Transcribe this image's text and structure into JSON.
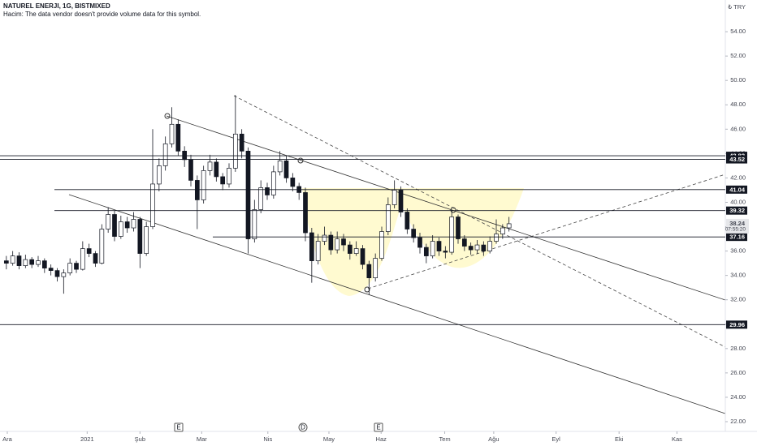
{
  "chart_data": {
    "type": "candlestick",
    "title": "NATUREL ENERJI, 1G, BISTMIXED",
    "subtitle": "Hacim: The data vendor doesn't provide volume data for this symbol.",
    "currency": "₺ TRY",
    "countdown": "07:55:20",
    "events": [
      "E",
      "D",
      "E"
    ],
    "xlim": [
      -1,
      113
    ],
    "xticks": [
      {
        "value": 0.15,
        "label": "Ara"
      },
      {
        "value": 12.7,
        "label": "2021"
      },
      {
        "value": 21,
        "label": "Şub"
      },
      {
        "value": 30.7,
        "label": "Mar"
      },
      {
        "value": 41.1,
        "label": "Nis"
      },
      {
        "value": 50.7,
        "label": "May"
      },
      {
        "value": 58.9,
        "label": "Haz"
      },
      {
        "value": 68.9,
        "label": "Tem"
      },
      {
        "value": 76.6,
        "label": "Ağu"
      },
      {
        "value": 86.4,
        "label": "Eyl"
      },
      {
        "value": 96.3,
        "label": "Eki"
      },
      {
        "value": 105.4,
        "label": "Kas"
      }
    ],
    "ylim": [
      21.2,
      56.6
    ],
    "yticks": [
      {
        "value": 22,
        "label": "22.00"
      },
      {
        "value": 24,
        "label": "24.00"
      },
      {
        "value": 26,
        "label": "26.00"
      },
      {
        "value": 28,
        "label": "28.00"
      },
      {
        "value": 30,
        "label": "30.00"
      },
      {
        "value": 32,
        "label": "32.00"
      },
      {
        "value": 34,
        "label": "34.00"
      },
      {
        "value": 36,
        "label": "36.00"
      },
      {
        "value": 38,
        "label": "38.00"
      },
      {
        "value": 40,
        "label": "40.00"
      },
      {
        "value": 42,
        "label": "42.00"
      },
      {
        "value": 44,
        "label": "44.00"
      },
      {
        "value": 46,
        "label": "46.00"
      },
      {
        "value": 48,
        "label": "48.00"
      },
      {
        "value": 50,
        "label": "50.00"
      },
      {
        "value": 52,
        "label": "52.00"
      },
      {
        "value": 54,
        "label": "54.00"
      }
    ],
    "levels": [
      43.82,
      43.52,
      41.04,
      39.32,
      37.16,
      29.96
    ],
    "up_color": "#ffffff",
    "down_color": "#131722",
    "ohlc": [
      [
        35.2,
        35.6,
        34.5,
        35.0
      ],
      [
        35.0,
        36.0,
        34.8,
        35.6
      ],
      [
        35.6,
        35.9,
        34.5,
        34.8
      ],
      [
        34.8,
        35.7,
        34.6,
        35.3
      ],
      [
        35.3,
        35.5,
        34.6,
        34.9
      ],
      [
        34.9,
        35.6,
        34.7,
        35.2
      ],
      [
        35.2,
        35.4,
        34.2,
        34.6
      ],
      [
        34.6,
        34.9,
        34.0,
        34.4
      ],
      [
        34.4,
        34.6,
        33.5,
        33.9
      ],
      [
        33.9,
        34.5,
        32.5,
        34.2
      ],
      [
        34.2,
        35.4,
        34.0,
        35.0
      ],
      [
        35.0,
        35.2,
        34.2,
        34.5
      ],
      [
        34.5,
        36.8,
        34.4,
        36.2
      ],
      [
        36.2,
        36.6,
        35.5,
        35.8
      ],
      [
        35.8,
        36.0,
        34.7,
        35.0
      ],
      [
        35.0,
        38.2,
        34.9,
        37.8
      ],
      [
        37.8,
        39.6,
        37.5,
        39.0
      ],
      [
        39.0,
        39.3,
        36.8,
        37.2
      ],
      [
        37.2,
        38.9,
        37.0,
        38.4
      ],
      [
        38.4,
        38.8,
        37.5,
        37.9
      ],
      [
        37.9,
        39.2,
        37.6,
        38.6
      ],
      [
        38.6,
        38.8,
        34.6,
        35.8
      ],
      [
        35.8,
        38.4,
        35.6,
        38.0
      ],
      [
        38.0,
        46.0,
        37.8,
        41.5
      ],
      [
        41.5,
        43.6,
        40.9,
        43.0
      ],
      [
        43.0,
        45.4,
        42.6,
        44.8
      ],
      [
        44.8,
        47.8,
        44.5,
        46.4
      ],
      [
        46.4,
        46.8,
        43.8,
        44.2
      ],
      [
        44.2,
        44.6,
        42.9,
        43.5
      ],
      [
        43.5,
        43.9,
        41.3,
        41.8
      ],
      [
        41.8,
        42.2,
        37.8,
        40.2
      ],
      [
        40.2,
        43.0,
        39.9,
        42.6
      ],
      [
        42.6,
        43.9,
        42.2,
        43.3
      ],
      [
        43.3,
        43.6,
        41.7,
        42.1
      ],
      [
        42.1,
        42.4,
        41.0,
        41.5
      ],
      [
        41.5,
        43.2,
        41.2,
        42.8
      ],
      [
        42.8,
        48.8,
        42.5,
        45.6
      ],
      [
        45.6,
        46.0,
        43.6,
        44.2
      ],
      [
        44.2,
        44.5,
        35.8,
        37.0
      ],
      [
        37.0,
        40.2,
        36.7,
        39.4
      ],
      [
        39.4,
        41.8,
        39.1,
        41.2
      ],
      [
        41.2,
        41.6,
        40.2,
        40.6
      ],
      [
        40.6,
        43.0,
        40.3,
        42.5
      ],
      [
        42.5,
        44.2,
        42.2,
        43.4
      ],
      [
        43.4,
        43.8,
        41.6,
        42.0
      ],
      [
        42.0,
        42.4,
        40.9,
        41.3
      ],
      [
        41.3,
        41.6,
        40.2,
        40.8
      ],
      [
        40.8,
        41.2,
        36.8,
        37.5
      ],
      [
        37.5,
        37.9,
        33.4,
        35.2
      ],
      [
        35.2,
        37.4,
        34.9,
        36.8
      ],
      [
        36.8,
        38.0,
        36.5,
        37.3
      ],
      [
        37.3,
        37.6,
        35.7,
        36.1
      ],
      [
        36.1,
        37.6,
        35.8,
        37.0
      ],
      [
        37.0,
        37.4,
        36.0,
        36.5
      ],
      [
        36.5,
        36.8,
        35.3,
        35.8
      ],
      [
        35.8,
        36.8,
        35.6,
        36.2
      ],
      [
        36.2,
        36.5,
        34.5,
        34.9
      ],
      [
        34.9,
        35.2,
        32.4,
        33.8
      ],
      [
        33.8,
        35.8,
        33.5,
        35.4
      ],
      [
        35.4,
        38.0,
        35.2,
        37.6
      ],
      [
        37.6,
        40.4,
        37.3,
        39.8
      ],
      [
        39.8,
        41.8,
        39.5,
        41.0
      ],
      [
        41.0,
        41.3,
        38.8,
        39.2
      ],
      [
        39.2,
        39.5,
        37.4,
        37.8
      ],
      [
        37.8,
        38.2,
        36.7,
        37.1
      ],
      [
        37.1,
        37.5,
        35.8,
        36.3
      ],
      [
        36.3,
        36.6,
        35.0,
        35.6
      ],
      [
        35.6,
        37.3,
        35.4,
        36.8
      ],
      [
        36.8,
        37.1,
        35.6,
        36.0
      ],
      [
        36.0,
        36.4,
        35.4,
        35.9
      ],
      [
        35.9,
        39.4,
        35.7,
        38.8
      ],
      [
        38.8,
        39.0,
        36.6,
        37.0
      ],
      [
        37.0,
        37.3,
        36.0,
        36.4
      ],
      [
        36.4,
        36.7,
        35.7,
        36.1
      ],
      [
        36.1,
        36.9,
        35.8,
        36.5
      ],
      [
        36.5,
        36.8,
        35.6,
        36.0
      ],
      [
        36.0,
        37.2,
        35.8,
        36.8
      ],
      [
        36.8,
        38.6,
        36.6,
        37.4
      ],
      [
        37.4,
        38.2,
        37.0,
        37.9
      ],
      [
        37.9,
        38.8,
        37.6,
        38.24
      ]
    ]
  }
}
